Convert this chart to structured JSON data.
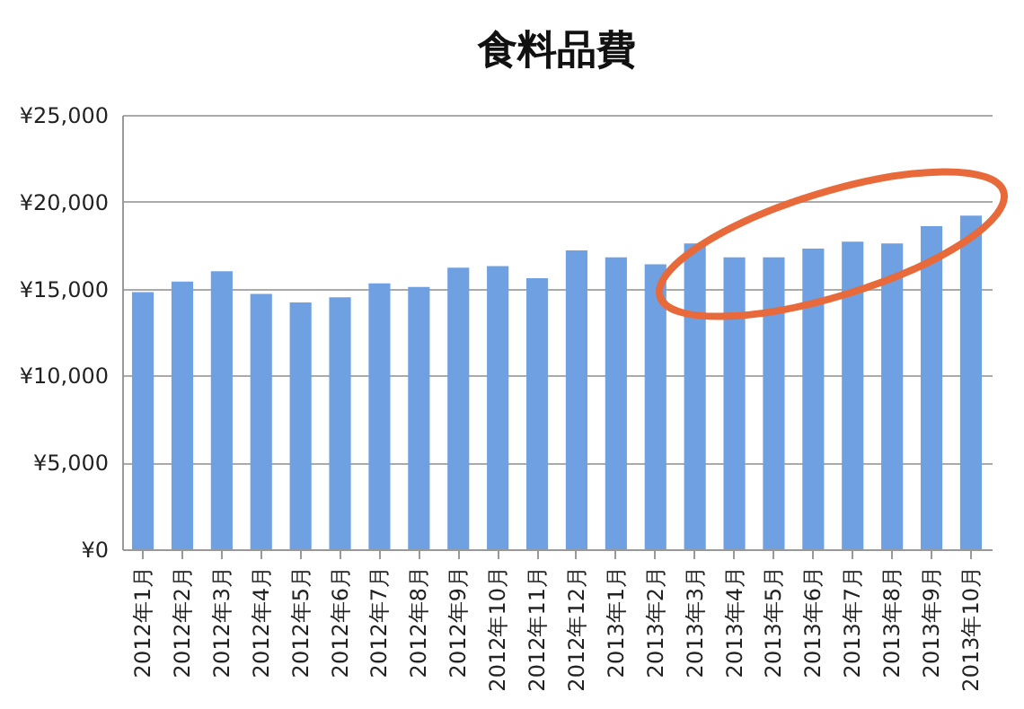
{
  "chart_data": {
    "type": "bar",
    "title": "食料品費",
    "categories": [
      "2012年1月",
      "2012年2月",
      "2012年3月",
      "2012年4月",
      "2012年5月",
      "2012年6月",
      "2012年7月",
      "2012年8月",
      "2012年9月",
      "2012年10月",
      "2012年11月",
      "2012年12月",
      "2013年1月",
      "2013年2月",
      "2013年3月",
      "2013年4月",
      "2013年5月",
      "2013年6月",
      "2013年7月",
      "2013年8月",
      "2013年9月",
      "2013年10月"
    ],
    "values": [
      14800,
      15400,
      16000,
      14700,
      14200,
      14500,
      15300,
      15100,
      16200,
      16300,
      15600,
      17200,
      16800,
      16400,
      17600,
      16800,
      16800,
      17300,
      17700,
      17600,
      18600,
      19200
    ],
    "color": "#6fa0e2",
    "ylim": [
      0,
      25000
    ],
    "yticks": [
      {
        "value": 0,
        "label": "¥0"
      },
      {
        "value": 5000,
        "label": "¥5,000"
      },
      {
        "value": 10000,
        "label": "¥10,000"
      },
      {
        "value": 15000,
        "label": "¥15,000"
      },
      {
        "value": 20000,
        "label": "¥20,000"
      },
      {
        "value": 25000,
        "label": "¥25,000"
      }
    ],
    "grid": "y"
  }
}
